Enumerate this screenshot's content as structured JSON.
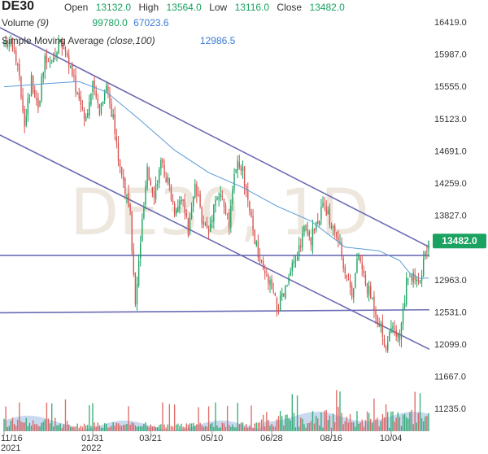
{
  "header": {
    "symbol": "DE30",
    "open_label": "Open",
    "open_value": "13132.0",
    "high_label": "High",
    "high_value": "13564.0",
    "low_label": "Low",
    "low_value": "13116.0",
    "close_label": "Close",
    "close_value": "13482.0",
    "volume_label": "Volume",
    "volume_param": "(9)",
    "volume_value_1": "99780.0",
    "volume_value_2": "67023.6",
    "sma_label": "Simple Moving Average",
    "sma_param": "(close,100)",
    "sma_value": "12986.5"
  },
  "watermark": "DE30, 1D",
  "colors": {
    "up": "#1aa260",
    "down": "#d9534f",
    "sma": "#5b9bd5",
    "trend": "#6b6bb5",
    "badge": "#1aa260",
    "volume": "#9db9e3"
  },
  "chart_data": {
    "type": "candlestick",
    "title": "DE30",
    "y_ticks": [
      16419.0,
      15987.0,
      15555.0,
      15123.0,
      14691.0,
      14259.0,
      13827.0,
      12963.0,
      12531.0,
      12099.0,
      11667.0,
      11235.0
    ],
    "y_tick_labels": [
      "16419.0",
      "15987.0",
      "15555.0",
      "15123.0",
      "14691.0",
      "14259.0",
      "13827.0",
      "12963.0",
      "12531.0",
      "12099.0",
      "11667.0",
      "11235.0"
    ],
    "ylim": [
      11150,
      16620
    ],
    "x_ticks": [
      {
        "label": "11/16",
        "sub": "2021",
        "index": 0
      },
      {
        "label": "01/31",
        "sub": "2022",
        "index": 52
      },
      {
        "label": "03/21",
        "sub": "",
        "index": 86
      },
      {
        "label": "05/10",
        "sub": "",
        "index": 122
      },
      {
        "label": "06/28",
        "sub": "",
        "index": 157
      },
      {
        "label": "08/16",
        "sub": "",
        "index": 192
      },
      {
        "label": "10/04",
        "sub": "",
        "index": 227
      }
    ],
    "n_bars": 250,
    "last_price": "13482.0",
    "last_value": 13482,
    "anchors": [
      [
        0,
        16100
      ],
      [
        4,
        16200
      ],
      [
        8,
        15800
      ],
      [
        12,
        15100
      ],
      [
        16,
        15650
      ],
      [
        20,
        15300
      ],
      [
        24,
        15900
      ],
      [
        28,
        15850
      ],
      [
        32,
        16150
      ],
      [
        36,
        16050
      ],
      [
        40,
        15700
      ],
      [
        44,
        15400
      ],
      [
        48,
        15150
      ],
      [
        52,
        15550
      ],
      [
        56,
        15250
      ],
      [
        60,
        15600
      ],
      [
        64,
        15100
      ],
      [
        67,
        14600
      ],
      [
        70,
        14300
      ],
      [
        74,
        13800
      ],
      [
        77,
        12600
      ],
      [
        80,
        13500
      ],
      [
        84,
        14400
      ],
      [
        88,
        14150
      ],
      [
        92,
        14500
      ],
      [
        96,
        14300
      ],
      [
        100,
        13900
      ],
      [
        104,
        14100
      ],
      [
        108,
        13600
      ],
      [
        112,
        14200
      ],
      [
        116,
        13800
      ],
      [
        120,
        13600
      ],
      [
        124,
        14100
      ],
      [
        128,
        14050
      ],
      [
        132,
        13700
      ],
      [
        136,
        14500
      ],
      [
        140,
        14400
      ],
      [
        144,
        13850
      ],
      [
        148,
        13400
      ],
      [
        152,
        13050
      ],
      [
        156,
        12900
      ],
      [
        160,
        12600
      ],
      [
        164,
        12750
      ],
      [
        168,
        13050
      ],
      [
        172,
        13300
      ],
      [
        176,
        13650
      ],
      [
        180,
        13500
      ],
      [
        184,
        13800
      ],
      [
        188,
        13950
      ],
      [
        192,
        13700
      ],
      [
        196,
        13500
      ],
      [
        200,
        13100
      ],
      [
        204,
        12800
      ],
      [
        208,
        13300
      ],
      [
        212,
        12900
      ],
      [
        216,
        12700
      ],
      [
        220,
        12400
      ],
      [
        224,
        12050
      ],
      [
        228,
        12300
      ],
      [
        232,
        12150
      ],
      [
        236,
        12900
      ],
      [
        240,
        13050
      ],
      [
        244,
        12950
      ],
      [
        249,
        13482
      ]
    ],
    "sma_points": [
      [
        0,
        15550
      ],
      [
        30,
        15600
      ],
      [
        44,
        15620
      ],
      [
        60,
        15480
      ],
      [
        80,
        15100
      ],
      [
        100,
        14700
      ],
      [
        120,
        14400
      ],
      [
        140,
        14200
      ],
      [
        160,
        13950
      ],
      [
        180,
        13750
      ],
      [
        200,
        13400
      ],
      [
        220,
        13350
      ],
      [
        232,
        13220
      ],
      [
        238,
        13050
      ],
      [
        244,
        12980
      ],
      [
        249,
        12986
      ]
    ],
    "trendlines": [
      {
        "name": "upper-channel",
        "points": [
          [
            0,
            16320
          ],
          [
            249,
            13400
          ]
        ]
      },
      {
        "name": "lower-channel",
        "points": [
          [
            0,
            14880
          ],
          [
            249,
            12030
          ]
        ]
      },
      {
        "name": "horizontal-resistance",
        "points": [
          [
            0,
            13290
          ],
          [
            249,
            13290
          ]
        ]
      },
      {
        "name": "horizontal-support",
        "points": [
          [
            0,
            12520
          ],
          [
            249,
            12560
          ]
        ]
      }
    ],
    "volume_level": 0.35
  }
}
